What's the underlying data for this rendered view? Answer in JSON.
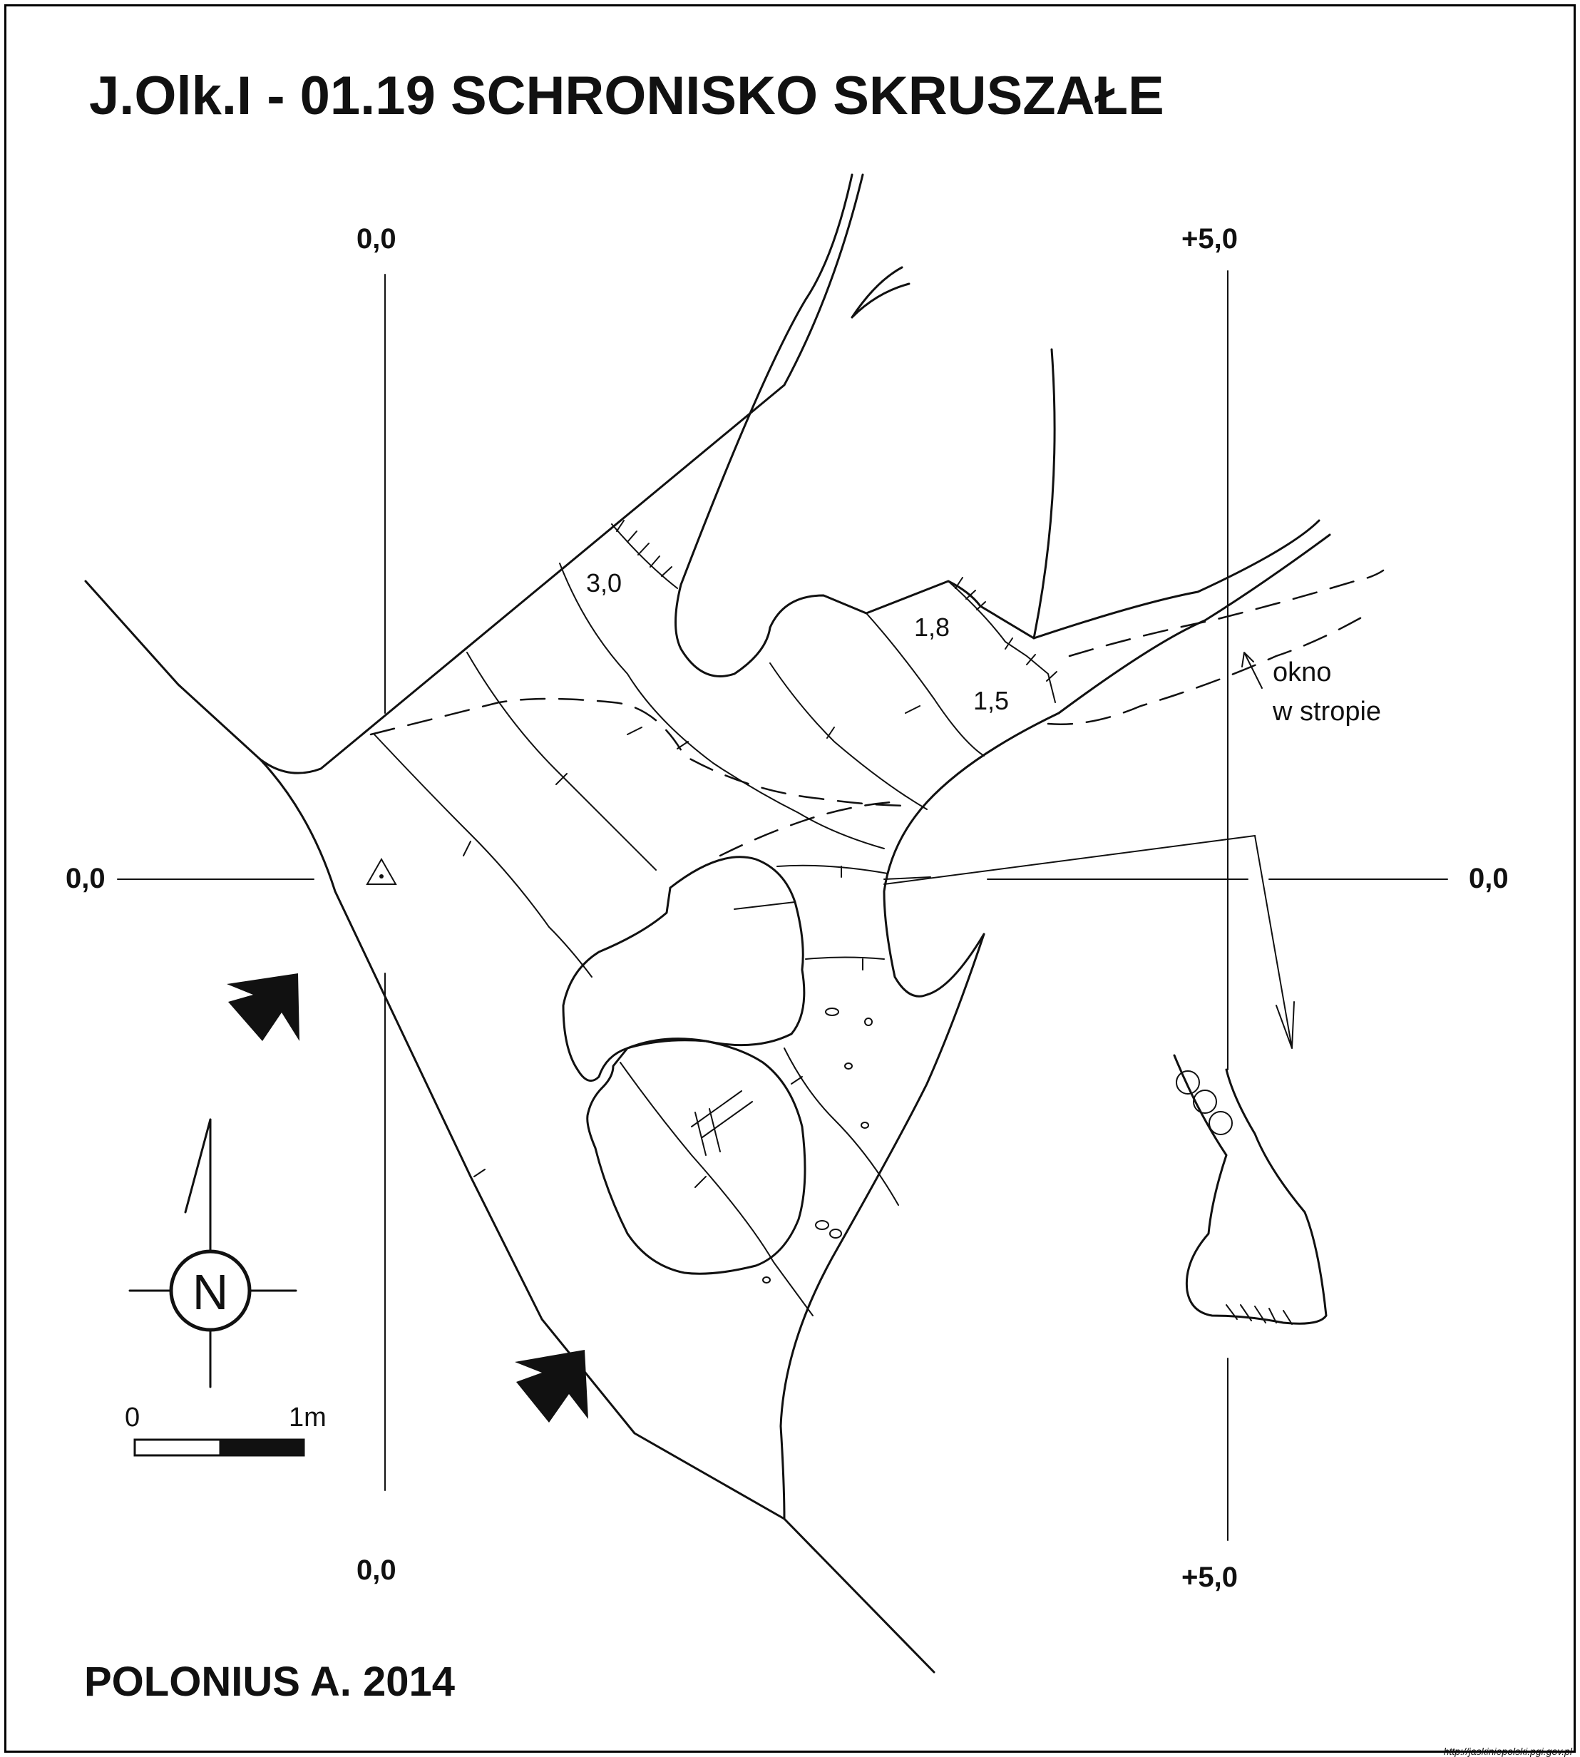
{
  "title": "J.Olk.I - 01.19  SCHRONISKO SKRUSZAŁE",
  "author": "POLONIUS A. 2014",
  "url": "http://jaskiniepolski.pgi.gov.pl",
  "grid_labels": {
    "top_left": "0,0",
    "top_right": "+5,0",
    "left": "0,0",
    "right": "0,0",
    "bottom_left": "0,0",
    "bottom_right": "+5,0"
  },
  "heights": [
    "3,0",
    "1,8",
    "1,5"
  ],
  "annotation": {
    "line1": "okno",
    "line2": "w stropie"
  },
  "compass": {
    "letter": "N"
  },
  "scale": {
    "start": "0",
    "end": "1m"
  }
}
